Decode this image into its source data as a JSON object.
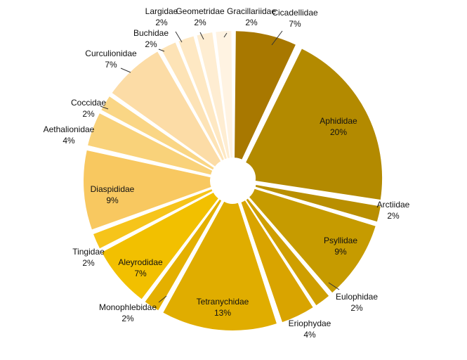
{
  "chart_data": {
    "type": "pie",
    "title": "",
    "categories": [
      "Cicadellidae",
      "Aphididae",
      "Arctiidae",
      "Psyllidae",
      "Eulophidae",
      "Eriophydae",
      "Tetranychidae",
      "Monophlebidae",
      "Aleyrodidae",
      "Tingidae",
      "Diaspididae",
      "Aethalionidae",
      "Coccidae",
      "Curculionidae",
      "Buchidae",
      "Largidae",
      "Geometridae",
      "Gracillariidae"
    ],
    "values": [
      7,
      20,
      2,
      9,
      2,
      4,
      13,
      2,
      7,
      2,
      9,
      4,
      2,
      7,
      2,
      2,
      2,
      2
    ],
    "value_labels": [
      "7%",
      "20%",
      "2%",
      "9%",
      "2%",
      "4%",
      "13%",
      "2%",
      "7%",
      "2%",
      "9%",
      "4%",
      "2%",
      "7%",
      "2%",
      "2%",
      "2%",
      "2%"
    ],
    "colors": [
      "#a87800",
      "#b38a00",
      "#b98f00",
      "#c69b00",
      "#cf9f00",
      "#d9a400",
      "#e0ad00",
      "#e4b000",
      "#f2c000",
      "#f6c41a",
      "#f8c860",
      "#f9d27a",
      "#fad685",
      "#fcdca6",
      "#fde3b6",
      "#fee8c3",
      "#feedd2",
      "#fff3e2"
    ],
    "legend": "none",
    "start_angle": "12 o'clock",
    "direction": "clockwise",
    "exploded": true
  }
}
